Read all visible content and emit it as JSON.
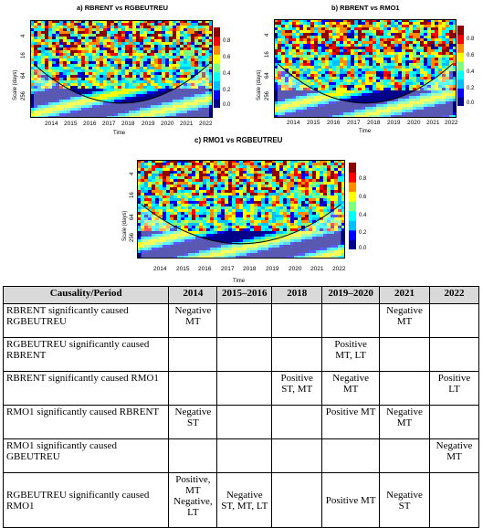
{
  "panels": [
    {
      "id": "a",
      "title": "a) RBRENT vs RGBEUTREU",
      "ylabel": "Scale (days)",
      "xlabel": "Time",
      "yticks": [
        "4",
        "16",
        "64",
        "256"
      ],
      "xticks": [
        "2014",
        "2015",
        "2016",
        "2017",
        "2018",
        "2019",
        "2020",
        "2021",
        "2022"
      ],
      "colorbar_ticks": [
        "0.8",
        "0.6",
        "0.4",
        "0.2",
        "0.0"
      ]
    },
    {
      "id": "b",
      "title": "b) RBRENT vs RMO1",
      "ylabel": "Scale (days)",
      "xlabel": "Time",
      "yticks": [
        "4",
        "16",
        "64",
        "256"
      ],
      "xticks": [
        "2014",
        "2015",
        "2016",
        "2017",
        "2018",
        "2019",
        "2020",
        "2021",
        "2022"
      ],
      "colorbar_ticks": [
        "0.8",
        "0.6",
        "0.4",
        "0.2",
        "0.0"
      ]
    },
    {
      "id": "c",
      "title": "c) RMO1 vs RGBEUTREU",
      "ylabel": "Scale (days)",
      "xlabel": "Time",
      "yticks": [
        "4",
        "16",
        "64",
        "256"
      ],
      "xticks": [
        "2014",
        "2015",
        "2016",
        "2017",
        "2018",
        "2019",
        "2020",
        "2021",
        "2022"
      ],
      "colorbar_ticks": [
        "0.8",
        "0.6",
        "0.4",
        "0.2",
        "0.0"
      ]
    }
  ],
  "colorscale": [
    "#00008b",
    "#0000ff",
    "#00bfff",
    "#00ffff",
    "#7fff7f",
    "#ffff00",
    "#ff8c00",
    "#ff0000",
    "#8b0000"
  ],
  "table": {
    "headers": [
      "Causality/Period",
      "2014",
      "2015–2016",
      "2018",
      "2019–2020",
      "2021",
      "2022"
    ],
    "rows": [
      [
        "RBRENT significantly caused RGBEUTREU",
        "Negative MT",
        "",
        "",
        "",
        "Negative MT",
        ""
      ],
      [
        "RGBEUTREU significantly caused RBRENT",
        "",
        "",
        "",
        "Positive MT, LT",
        "",
        ""
      ],
      [
        "RBRENT significantly caused RMO1",
        "",
        "",
        "Positive ST, MT",
        "Negative MT",
        "",
        "Positive LT"
      ],
      [
        "RMO1 significantly caused RBRENT",
        "Negative ST",
        "",
        "",
        "Positive MT",
        "Negative MT",
        ""
      ],
      [
        "RMO1 significantly caused GBEUTREU",
        "",
        "",
        "",
        "",
        "",
        "Negative MT"
      ],
      [
        "RGBEUTREU significantly caused RMO1",
        "Positive, MT Negative, LT",
        "Negative ST, MT, LT",
        "",
        "Positive MT",
        "Negative ST",
        ""
      ]
    ]
  }
}
